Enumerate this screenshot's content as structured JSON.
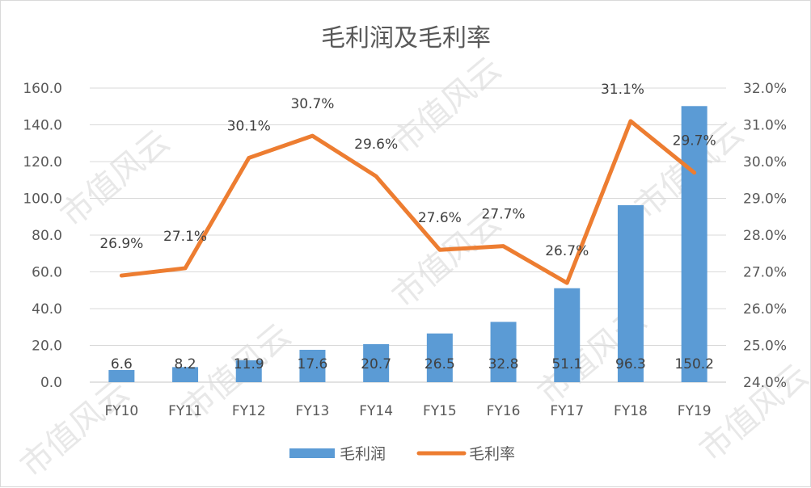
{
  "chart_data": {
    "type": "bar",
    "title": "毛利润及毛利率",
    "categories": [
      "FY10",
      "FY11",
      "FY12",
      "FY13",
      "FY14",
      "FY15",
      "FY16",
      "FY17",
      "FY18",
      "FY19"
    ],
    "series": [
      {
        "name": "毛利润",
        "type": "bar",
        "axis": "left",
        "color": "#5b9bd5",
        "values": [
          6.6,
          8.2,
          11.9,
          17.6,
          20.7,
          26.5,
          32.8,
          51.1,
          96.3,
          150.2
        ],
        "labels": [
          "6.6",
          "8.2",
          "11.9",
          "17.6",
          "20.7",
          "26.5",
          "32.8",
          "51.1",
          "96.3",
          "150.2"
        ]
      },
      {
        "name": "毛利率",
        "type": "line",
        "axis": "right",
        "color": "#ed7d31",
        "values": [
          26.9,
          27.1,
          30.1,
          30.7,
          29.6,
          27.6,
          27.7,
          26.7,
          31.1,
          29.7
        ],
        "labels": [
          "26.9%",
          "27.1%",
          "30.1%",
          "30.7%",
          "29.6%",
          "27.6%",
          "27.7%",
          "26.7%",
          "31.1%",
          "29.7%"
        ]
      }
    ],
    "y_left": {
      "range": [
        0,
        160
      ],
      "ticks": [
        0,
        20,
        40,
        60,
        80,
        100,
        120,
        140,
        160
      ],
      "tick_labels": [
        "0.0",
        "20.0",
        "40.0",
        "60.0",
        "80.0",
        "100.0",
        "120.0",
        "140.0",
        "160.0"
      ]
    },
    "y_right": {
      "range": [
        24,
        32
      ],
      "ticks": [
        24,
        25,
        26,
        27,
        28,
        29,
        30,
        31,
        32
      ],
      "tick_labels": [
        "24.0%",
        "25.0%",
        "26.0%",
        "27.0%",
        "28.0%",
        "29.0%",
        "30.0%",
        "31.0%",
        "32.0%"
      ]
    },
    "grid": true,
    "legend": "bottom",
    "watermark": "市值风云",
    "axis_text_color": "#595959",
    "gridline_color": "#d9d9d9"
  }
}
